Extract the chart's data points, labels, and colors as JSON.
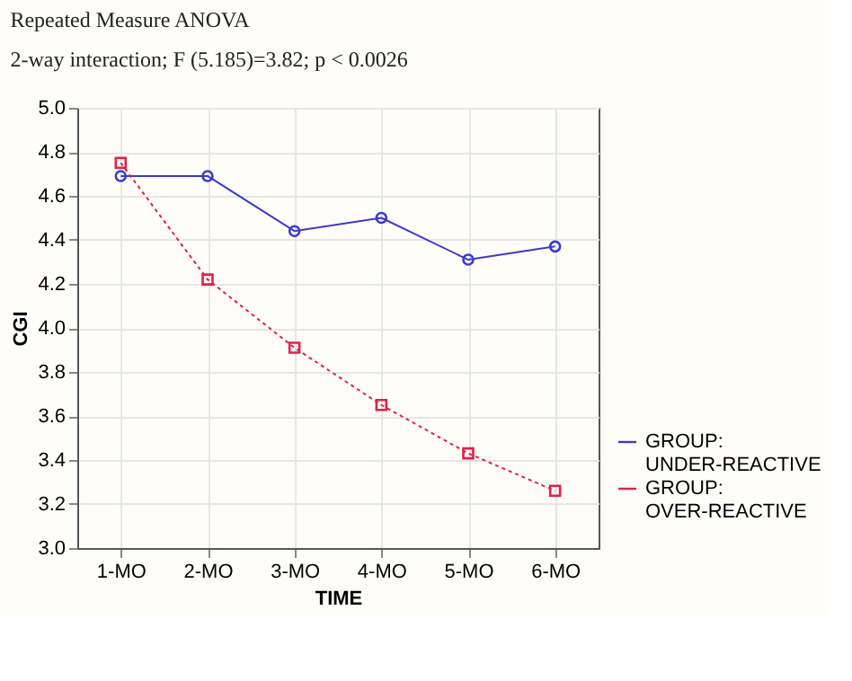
{
  "chart_data": {
    "type": "line",
    "title": "Repeated Measure ANOVA",
    "subtitle": "2-way interaction; F (5.185)=3.82; p < 0.0026",
    "xlabel": "TIME",
    "ylabel": "CGI",
    "categories": [
      "1-MO",
      "2-MO",
      "3-MO",
      "4-MO",
      "5-MO",
      "6-MO"
    ],
    "series": [
      {
        "name": "GROUP: UNDER-REACTIVE",
        "color": "#3a3ad0",
        "marker": "circle",
        "line_style": "solid",
        "values": [
          4.69,
          4.69,
          4.44,
          4.5,
          4.31,
          4.37
        ]
      },
      {
        "name": "GROUP: OVER-REACTIVE",
        "color": "#e0204a",
        "marker": "square",
        "line_style": "dotted",
        "values": [
          4.75,
          4.22,
          3.91,
          3.65,
          3.43,
          3.26
        ]
      }
    ],
    "ylim": [
      3.0,
      5.0
    ],
    "yticks": [
      {
        "value": 3,
        "label": "3.0"
      },
      3.2,
      3.4,
      3.6,
      3.8,
      {
        "value": 4,
        "label": "4.0"
      },
      4.2,
      4.4,
      4.6,
      4.8,
      {
        "value": 5,
        "label": "5.0"
      }
    ],
    "grid": true,
    "legend": "bottom right"
  }
}
